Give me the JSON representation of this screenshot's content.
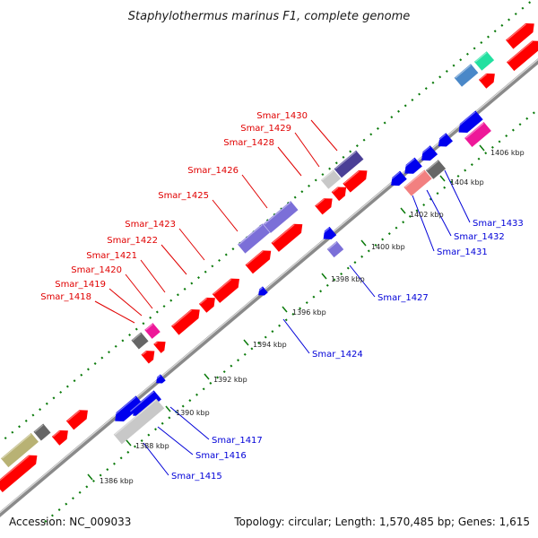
{
  "title": "Staphylothermus marinus F1, complete genome",
  "footer": {
    "accession": "Accession: NC_009033",
    "topology": "Topology: circular; Length: 1,570,485 bp; Genes: 1,615"
  },
  "colors": {
    "forward": "#ff0000",
    "reverse": "#0000ee",
    "backbone": "#8a8a8a",
    "dots": "#0a7a0a",
    "label_red": "#e00000",
    "label_blue": "#0000d8"
  },
  "tick_labels": [
    "1386 kbp",
    "1388 kbp",
    "1390 kbp",
    "1392 kbp",
    "1394 kbp",
    "1396 kbp",
    "1398 kbp",
    "1400 kbp",
    "1402 kbp",
    "1404 kbp",
    "1406 kbp"
  ],
  "forward_labels": [
    "Smar_1418",
    "Smar_1419",
    "Smar_1420",
    "Smar_1421",
    "Smar_1422",
    "Smar_1423",
    "Smar_1425",
    "Smar_1426",
    "Smar_1428",
    "Smar_1429",
    "Smar_1430"
  ],
  "reverse_labels": [
    "Smar_1415",
    "Smar_1416",
    "Smar_1417",
    "Smar_1424",
    "Smar_1427",
    "Smar_1431",
    "Smar_1432",
    "Smar_1433"
  ]
}
